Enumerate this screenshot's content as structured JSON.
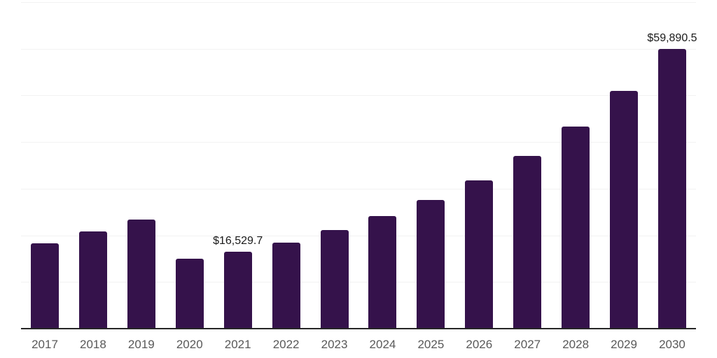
{
  "colors": {
    "background": "#FFFFFF",
    "bar": "#35124B",
    "grid": "#F2F2F2",
    "axis": "#262626",
    "tick_label": "#595959",
    "data_label": "#1A1A1A"
  },
  "chart_data": {
    "type": "bar",
    "title": "",
    "xlabel": "",
    "ylabel": "",
    "categories": [
      "2017",
      "2018",
      "2019",
      "2020",
      "2021",
      "2022",
      "2023",
      "2024",
      "2025",
      "2026",
      "2027",
      "2028",
      "2029",
      "2030"
    ],
    "values": [
      18350,
      20800,
      23350,
      15050,
      16529.7,
      18400,
      21100,
      24100,
      27550,
      31750,
      37050,
      43350,
      50900,
      59890.5
    ],
    "point_labels": [
      "",
      "",
      "",
      "",
      "$16,529.7",
      "",
      "",
      "",
      "",
      "",
      "",
      "",
      "",
      "$59,890.5"
    ],
    "ylim": [
      0,
      70000
    ],
    "gridline_values": [
      10000,
      20000,
      30000,
      40000,
      50000,
      60000,
      70000
    ],
    "grid": true,
    "legend": false,
    "y_axis_ticks_visible": false
  }
}
